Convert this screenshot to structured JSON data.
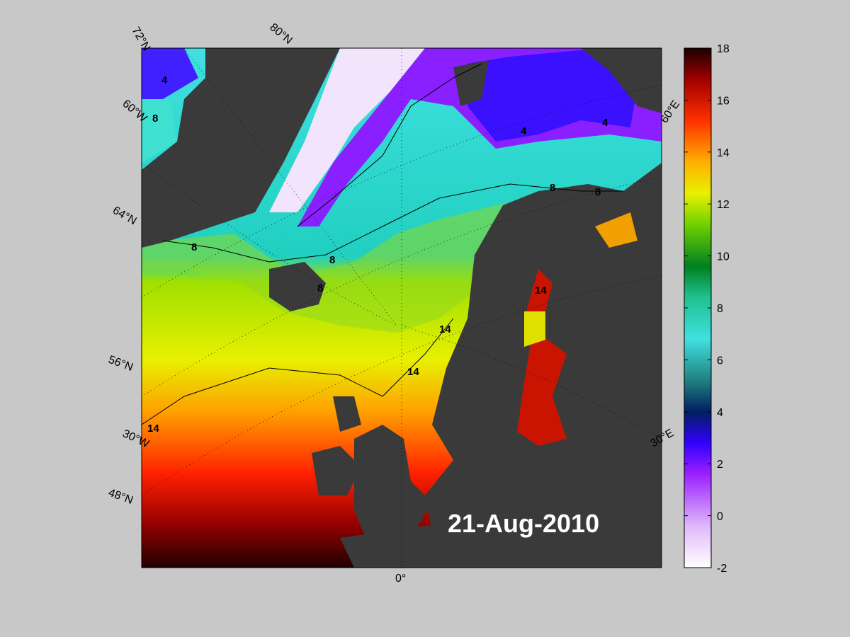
{
  "date_label": "21-Aug-2010",
  "lat_labels": [
    "72°N",
    "64°N",
    "56°N",
    "48°N"
  ],
  "lon_labels": [
    "80°N",
    "60°W",
    "30°W",
    "0°",
    "30°E",
    "60°E"
  ],
  "contour_labels": [
    "4",
    "8",
    "14"
  ],
  "colorbar": {
    "ticks": [
      "18",
      "16",
      "14",
      "12",
      "10",
      "8",
      "6",
      "4",
      "2",
      "0",
      "-2"
    ],
    "min": -2,
    "max": 18,
    "colors": [
      "#ffffff",
      "#d7a8f7",
      "#8a00ff",
      "#2600ff",
      "#00306a",
      "#40c4c4",
      "#46f0e4",
      "#00d060",
      "#8ad000",
      "#f0f000",
      "#ff8a00",
      "#ff2a00",
      "#a00000",
      "#200000"
    ]
  }
}
